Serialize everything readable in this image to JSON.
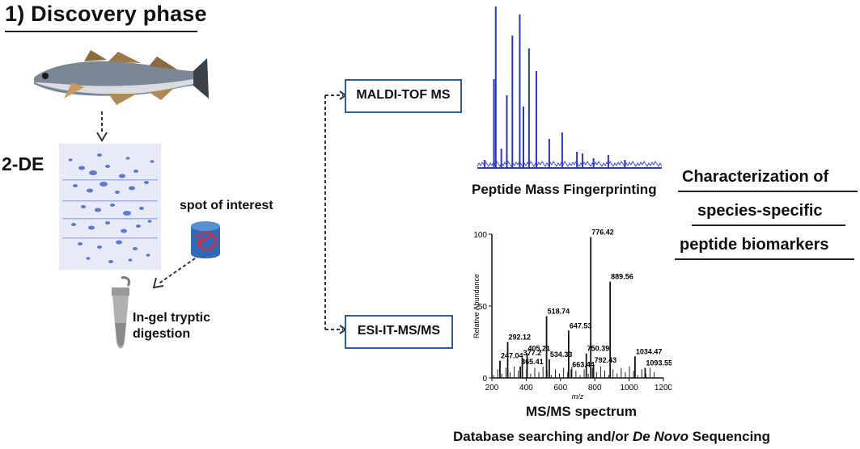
{
  "title": "1) Discovery phase",
  "gel_label": "2-DE",
  "spot_label": "spot of interest",
  "digestion_line1": "In-gel tryptic",
  "digestion_line2": "digestion",
  "method_maldi": "MALDI-TOF MS",
  "method_esi": "ESI-IT-MS/MS",
  "pmf_caption": "Peptide Mass Fingerprinting",
  "msms_caption": "MS/MS spectrum",
  "msms_subcaption_pre": "Database searching and/or ",
  "msms_subcaption_italic": "De Novo",
  "msms_subcaption_post": " Sequencing",
  "characterization": {
    "line1": "Characterization of",
    "line2": "species-specific",
    "line3": "peptide biomarkers"
  },
  "chart_data": [
    {
      "type": "line",
      "title": "Peptide Mass Fingerprinting",
      "peaks_relative": [
        0.05,
        0.55,
        1.0,
        0.12,
        0.45,
        0.82,
        0.95,
        0.38,
        0.74,
        0.6,
        0.18,
        0.22,
        0.1,
        0.09,
        0.06,
        0.08,
        0.05
      ],
      "peak_positions_relative": [
        0.04,
        0.09,
        0.1,
        0.13,
        0.16,
        0.19,
        0.23,
        0.25,
        0.28,
        0.32,
        0.39,
        0.46,
        0.54,
        0.57,
        0.63,
        0.71,
        0.8
      ]
    },
    {
      "type": "bar",
      "title": "MS/MS spectrum",
      "xlabel": "m/z",
      "ylabel": "Relative Abundance",
      "xlim": [
        200,
        1200
      ],
      "ylim": [
        0,
        100
      ],
      "xticks": [
        200,
        400,
        600,
        800,
        1000,
        1200
      ],
      "yticks": [
        0,
        50,
        100
      ],
      "x": [
        247.04,
        292.12,
        365.41,
        377.2,
        405.21,
        518.74,
        534.33,
        647.53,
        663.44,
        750.39,
        776.42,
        792.43,
        889.56,
        1034.47,
        1093.55
      ],
      "values": [
        12,
        25,
        8,
        14,
        17,
        43,
        13,
        33,
        6,
        17,
        98,
        9,
        67,
        15,
        7
      ],
      "labels": [
        "247.04",
        "292.12",
        "365.41",
        "377.2",
        "405.21",
        "518.74",
        "534.33",
        "647.53",
        "663.44",
        "750.39",
        "776.42",
        "792.43",
        "889.56",
        "1034.47",
        "1093.55"
      ]
    }
  ]
}
